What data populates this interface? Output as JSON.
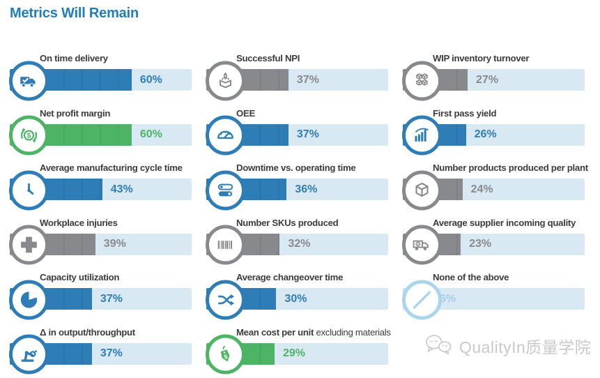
{
  "title": "Metrics Will Remain",
  "palette": {
    "title_blue": "#1e7dbe",
    "bar_blue": "#2e7db6",
    "bar_green": "#4db466",
    "bar_gray": "#87898c",
    "bar_light_blue": "#c9e2f2",
    "track_background": "#d9e9f4",
    "label_text": "#3c3c3c",
    "watermark_gray": "#c9c9c9"
  },
  "watermark": {
    "label": "QualityIn质量学院",
    "icon": "wechat-icon"
  },
  "columns": [
    {
      "items": [
        {
          "label": "On time delivery",
          "pct_label": "60%",
          "value": 60,
          "color": "blue",
          "icon": "delivery-truck-icon"
        },
        {
          "label": "Net profit margin",
          "pct_label": "60%",
          "value": 60,
          "color": "green",
          "icon": "dollar-cycle-icon"
        },
        {
          "label": "Average manufacturing cycle time",
          "pct_label": "43%",
          "value": 43,
          "color": "blue",
          "icon": "cycle-clock-icon"
        },
        {
          "label": "Workplace injuries",
          "pct_label": "39%",
          "value": 39,
          "color": "gray",
          "icon": "medical-cross-icon"
        },
        {
          "label": "Capacity utilization",
          "pct_label": "37%",
          "value": 37,
          "color": "blue",
          "icon": "pie-chart-icon"
        },
        {
          "label": "Δ in output/throughput",
          "pct_label": "37%",
          "value": 37,
          "color": "blue",
          "icon": "robot-arm-icon"
        }
      ]
    },
    {
      "items": [
        {
          "label": "Successful NPI",
          "pct_label": "37%",
          "value": 37,
          "color": "gray",
          "icon": "rocket-box-icon"
        },
        {
          "label": "OEE",
          "pct_label": "37%",
          "value": 37,
          "color": "blue",
          "icon": "gauge-icon"
        },
        {
          "label": "Downtime vs. operating time",
          "pct_label": "36%",
          "value": 36,
          "color": "blue",
          "icon": "toggle-switches-icon"
        },
        {
          "label": "Number SKUs produced",
          "pct_label": "32%",
          "value": 32,
          "color": "gray",
          "icon": "barcode-icon"
        },
        {
          "label": "Average changeover time",
          "pct_label": "30%",
          "value": 30,
          "color": "blue",
          "icon": "shuffle-arrows-icon"
        },
        {
          "label": "Mean cost per unit",
          "label_light": " excluding materials",
          "pct_label": "29%",
          "value": 29,
          "color": "green",
          "icon": "price-tag-icon"
        }
      ]
    },
    {
      "items": [
        {
          "label": "WIP inventory turnover",
          "pct_label": "27%",
          "value": 27,
          "color": "gray",
          "icon": "cubes-icon"
        },
        {
          "label": "First pass yield",
          "pct_label": "26%",
          "value": 26,
          "color": "blue",
          "icon": "bar-chart-icon"
        },
        {
          "label": "Number products produced per plant",
          "pct_label": "24%",
          "value": 24,
          "color": "gray",
          "icon": "cube-icon"
        },
        {
          "label": "Average supplier incoming quality",
          "pct_label": "23%",
          "value": 23,
          "color": "gray",
          "icon": "supplier-truck-icon"
        },
        {
          "label": "None of the above",
          "pct_label": "6%",
          "value": 6,
          "color": "light",
          "icon": "no-symbol-icon"
        }
      ]
    }
  ],
  "chart_data": {
    "type": "bar",
    "orientation": "horizontal",
    "title": "Metrics Will Remain",
    "unit": "%",
    "xlim": [
      0,
      100
    ],
    "grid": false,
    "value_labels": "shown at end of each bar",
    "categories": [
      "On time delivery",
      "Net profit margin",
      "Average manufacturing cycle time",
      "Workplace injuries",
      "Capacity utilization",
      "Δ in output/throughput",
      "Successful NPI",
      "OEE",
      "Downtime vs. operating time",
      "Number SKUs produced",
      "Average changeover time",
      "Mean cost per unit excluding materials",
      "WIP inventory turnover",
      "First pass yield",
      "Number products produced per plant",
      "Average supplier incoming quality",
      "None of the above"
    ],
    "values": [
      60,
      60,
      43,
      39,
      37,
      37,
      37,
      37,
      36,
      32,
      30,
      29,
      27,
      26,
      24,
      23,
      6
    ],
    "bar_colors": [
      "#2e7db6",
      "#4db466",
      "#2e7db6",
      "#87898c",
      "#2e7db6",
      "#2e7db6",
      "#87898c",
      "#2e7db6",
      "#2e7db6",
      "#87898c",
      "#2e7db6",
      "#4db466",
      "#87898c",
      "#2e7db6",
      "#87898c",
      "#87898c",
      "#c9e2f2"
    ]
  }
}
